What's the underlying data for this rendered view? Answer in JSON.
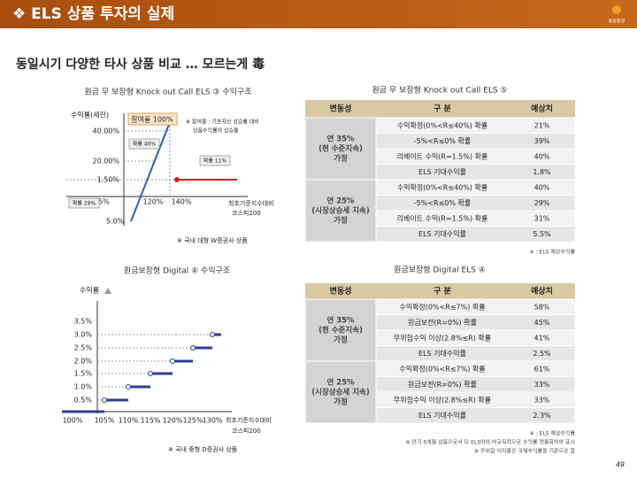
{
  "header": {
    "title": "❖ ELS 상품 투자의 실제",
    "logo": "동양증권"
  },
  "subtitle": "동일시기 다양한 타사 상품 비교 … 모르는게 毒",
  "chart1": {
    "title": "원금 무 보장형 Knock out Call ELS ③ 수익구조",
    "y_label": "수익률(세전)",
    "participation": "참여율 100%",
    "note": [
      "※ 참여율 : 기초자산 상승률 대비",
      "상품수익률의 상승율"
    ],
    "y_labels": [
      "40.00%",
      "20.00%",
      "1.50%"
    ],
    "x_labels": [
      "95%",
      "120%",
      "140%"
    ],
    "low_label": "5.0%",
    "probs": [
      "확률 40%",
      "확률 11%",
      "확률 29%"
    ],
    "x_axis": [
      "최초기준지수대비",
      "코스피200"
    ],
    "footer": "※ 국내 대형 W증권사 상품"
  },
  "chart2": {
    "title": "원금보장형 Digital ④ 수익구조",
    "y_label": "수익률",
    "y_labels": [
      "3.5%",
      "3.0%",
      "2.5%",
      "2.0%",
      "1.5%",
      "1.0%",
      "0.5%"
    ],
    "x_labels": [
      "100%",
      "105%",
      "110%",
      "115%",
      "120%",
      "125%",
      "130%"
    ],
    "x_axis": [
      "최초기준지수대비",
      "코스피200"
    ],
    "footer": "※ 국내 중형 D증권사 상품"
  },
  "tables": [
    {
      "title": "원금 무 보장형 Knock out Call ELS ⑤",
      "headers": [
        "변동성",
        "구 분",
        "예상치"
      ],
      "groups": [
        {
          "label": [
            "연 35%",
            "(현 수준지속)",
            "가정"
          ],
          "rows": [
            [
              "수익확정(0%<R≤40%) 확률",
              "21%"
            ],
            [
              "-5%<R≤0% 확률",
              "39%"
            ],
            [
              "리베이트 수익(R=1.5%) 확률",
              "40%"
            ],
            [
              "ELS 기대수익률",
              "1.8%"
            ]
          ]
        },
        {
          "label": [
            "연 25%",
            "(시장상승세 지속)",
            "가정"
          ],
          "rows": [
            [
              "수익확정(0%<R≤40%) 확률",
              "40%"
            ],
            [
              "-5%<R≤0% 확률",
              "29%"
            ],
            [
              "리베이트 수익(R=1.5%) 확률",
              "31%"
            ],
            [
              "ELS 기대수익률",
              "5.5%"
            ]
          ]
        }
      ],
      "notes": [
        "※ : ELS 예상수익률"
      ]
    },
    {
      "title": "원금보장형 Digital ELS ④",
      "headers": [
        "변동성",
        "구 분",
        "예상치"
      ],
      "groups": [
        {
          "label": [
            "연 35%",
            "(현 수준지속)",
            "가정"
          ],
          "rows": [
            [
              "수익확정(0%<R≤7%) 확률",
              "58%"
            ],
            [
              "원금보전(R=0%) 확률",
              "45%"
            ],
            [
              "무위험수익 이상(2.8%≤R) 확률",
              "41%"
            ],
            [
              "ELS 기대수익률",
              "2.5%"
            ]
          ]
        },
        {
          "label": [
            "연 25%",
            "(시장상승세 지속)",
            "가정"
          ],
          "rows": [
            [
              "수익확정(0%<R≤7%) 확률",
              "61%"
            ],
            [
              "원금보전(R=0%) 확률",
              "33%"
            ],
            [
              "무위험수익 이상(2.8%≤R) 확률",
              "33%"
            ],
            [
              "ELS 기대수익률",
              "2.3%"
            ]
          ]
        }
      ],
      "notes": [
        "※ : ELS 예상수익률",
        "※ 만기 6개월 상품으로서 타 ELS와의 비교목적으로 수익률 연율화하여 표시",
        "※ 무위험 이자율은 국채수익률을 기준으로 함"
      ]
    }
  ],
  "page_number": "49"
}
